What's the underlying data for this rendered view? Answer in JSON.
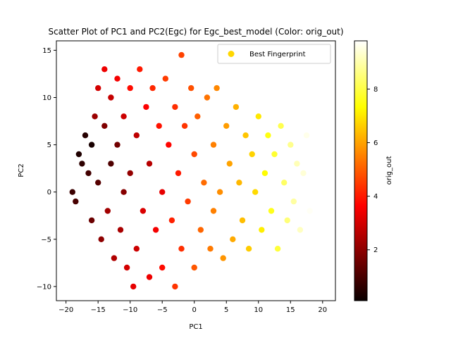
{
  "chart_data": {
    "type": "scatter",
    "title": "Scatter Plot of PC1 and PC2(Egc) for Egc_best_model (Color: orig_out)",
    "xlabel": "PC1",
    "ylabel": "PC2",
    "xlim": [
      -21.5,
      22
    ],
    "ylim": [
      -11.5,
      16
    ],
    "xticks": [
      -20,
      -15,
      -10,
      -5,
      0,
      5,
      10,
      15,
      20
    ],
    "yticks": [
      -10,
      -5,
      0,
      5,
      10,
      15
    ],
    "grid": false,
    "legend": {
      "placement": "top-right",
      "entries": [
        {
          "label": "Best Fingerprint",
          "color": "#ffd700"
        }
      ]
    },
    "colorbar": {
      "label": "orig_out",
      "range": [
        0.1,
        9.8
      ],
      "ticks": [
        2,
        4,
        6,
        8
      ],
      "colormap": "hot"
    },
    "series": [
      {
        "color_by": "orig_out",
        "points": [
          [
            -19,
            0,
            0.8
          ],
          [
            -18.5,
            -1,
            1.0
          ],
          [
            -18,
            4,
            0.4
          ],
          [
            -17.5,
            3,
            0.6
          ],
          [
            -17,
            6,
            0.5
          ],
          [
            -16.5,
            2,
            0.9
          ],
          [
            -16,
            5,
            0.3
          ],
          [
            -16,
            -3,
            1.5
          ],
          [
            -15.5,
            8,
            2.2
          ],
          [
            -15,
            11,
            3.0
          ],
          [
            -15,
            1,
            1.2
          ],
          [
            -14.5,
            -5,
            2.0
          ],
          [
            -14,
            13,
            3.4
          ],
          [
            -14,
            7,
            1.8
          ],
          [
            -13.5,
            -2,
            2.3
          ],
          [
            -13,
            10,
            2.8
          ],
          [
            -13,
            3,
            1.1
          ],
          [
            -12.5,
            -7,
            2.5
          ],
          [
            -12,
            12,
            3.5
          ],
          [
            -12,
            5,
            1.6
          ],
          [
            -11.5,
            -4,
            2.4
          ],
          [
            -11,
            8,
            2.9
          ],
          [
            -11,
            0,
            1.9
          ],
          [
            -10.5,
            -8,
            3.0
          ],
          [
            -10,
            11,
            3.8
          ],
          [
            -10,
            2,
            2.1
          ],
          [
            -9.5,
            -10,
            3.3
          ],
          [
            -9,
            6,
            2.7
          ],
          [
            -9,
            -6,
            2.9
          ],
          [
            -8.5,
            13,
            4.0
          ],
          [
            -8,
            -2,
            3.1
          ],
          [
            -7.5,
            9,
            3.6
          ],
          [
            -7,
            3,
            2.6
          ],
          [
            -7,
            -9,
            3.4
          ],
          [
            -6.5,
            11,
            4.2
          ],
          [
            -6,
            -4,
            3.5
          ],
          [
            -5.5,
            7,
            3.9
          ],
          [
            -5,
            0,
            3.3
          ],
          [
            -5,
            -8,
            3.8
          ],
          [
            -4.5,
            12,
            4.5
          ],
          [
            -4,
            5,
            3.7
          ],
          [
            -3.5,
            -3,
            4.1
          ],
          [
            -3,
            9,
            4.3
          ],
          [
            -3,
            -10,
            4.4
          ],
          [
            -2.5,
            2,
            4.0
          ],
          [
            -2,
            14.5,
            4.6
          ],
          [
            -2,
            -6,
            4.3
          ],
          [
            -1.5,
            7,
            4.4
          ],
          [
            -1,
            -1,
            4.5
          ],
          [
            -0.5,
            11,
            4.8
          ],
          [
            0,
            4,
            4.7
          ],
          [
            0,
            -8,
            4.9
          ],
          [
            0.5,
            8,
            5.0
          ],
          [
            1,
            -4,
            5.1
          ],
          [
            1.5,
            1,
            5.2
          ],
          [
            2,
            10,
            5.3
          ],
          [
            2.5,
            -6,
            5.4
          ],
          [
            3,
            5,
            5.5
          ],
          [
            3,
            -2,
            5.5
          ],
          [
            3.5,
            11,
            5.6
          ],
          [
            4,
            0,
            5.7
          ],
          [
            4.5,
            -7,
            5.8
          ],
          [
            5,
            7,
            5.9
          ],
          [
            5.5,
            3,
            6.0
          ],
          [
            6,
            -5,
            6.1
          ],
          [
            6.5,
            9,
            6.2
          ],
          [
            7,
            1,
            6.3
          ],
          [
            7.5,
            -3,
            6.4
          ],
          [
            8,
            6,
            6.5
          ],
          [
            8.5,
            -6,
            6.6
          ],
          [
            9,
            4,
            6.7
          ],
          [
            9.5,
            0,
            6.8
          ],
          [
            10,
            8,
            7.0
          ],
          [
            10.5,
            -4,
            7.1
          ],
          [
            11,
            2,
            7.3
          ],
          [
            11.5,
            6,
            7.5
          ],
          [
            12,
            -2,
            7.6
          ],
          [
            12.5,
            4,
            7.8
          ],
          [
            13,
            -6,
            7.9
          ],
          [
            13.5,
            7,
            8.1
          ],
          [
            14,
            1,
            8.3
          ],
          [
            14.5,
            -3,
            8.5
          ],
          [
            15,
            5,
            8.7
          ],
          [
            15.5,
            -1,
            8.9
          ],
          [
            16,
            3,
            9.1
          ],
          [
            16.5,
            -4,
            9.2
          ],
          [
            17,
            2,
            9.4
          ],
          [
            17.5,
            6,
            9.6
          ],
          [
            18,
            -2,
            9.7
          ],
          [
            18.5,
            3,
            9.8
          ]
        ]
      }
    ]
  }
}
